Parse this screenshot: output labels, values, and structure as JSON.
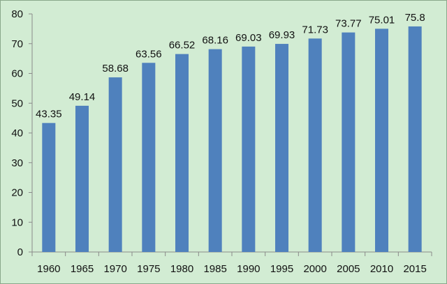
{
  "chart_data": {
    "type": "bar",
    "title": "",
    "xlabel": "",
    "ylabel": "",
    "categories": [
      "1960",
      "1965",
      "1970",
      "1975",
      "1980",
      "1985",
      "1990",
      "1995",
      "2000",
      "2005",
      "2010",
      "2015"
    ],
    "values": [
      43.35,
      49.14,
      58.68,
      63.56,
      66.52,
      68.16,
      69.03,
      69.93,
      71.73,
      73.77,
      75.01,
      75.8
    ],
    "data_labels": [
      "43.35",
      "49.14",
      "58.68",
      "63.56",
      "66.52",
      "68.16",
      "69.03",
      "69.93",
      "71.73",
      "73.77",
      "75.01",
      "75.8"
    ],
    "ylim": [
      0,
      80
    ],
    "y_ticks": [
      0,
      10,
      20,
      30,
      40,
      50,
      60,
      70,
      80
    ],
    "grid": false,
    "legend": false,
    "colors": {
      "bar": "#4f81bd",
      "background": "#d2ecd3",
      "axis": "#8a8a8a"
    }
  }
}
